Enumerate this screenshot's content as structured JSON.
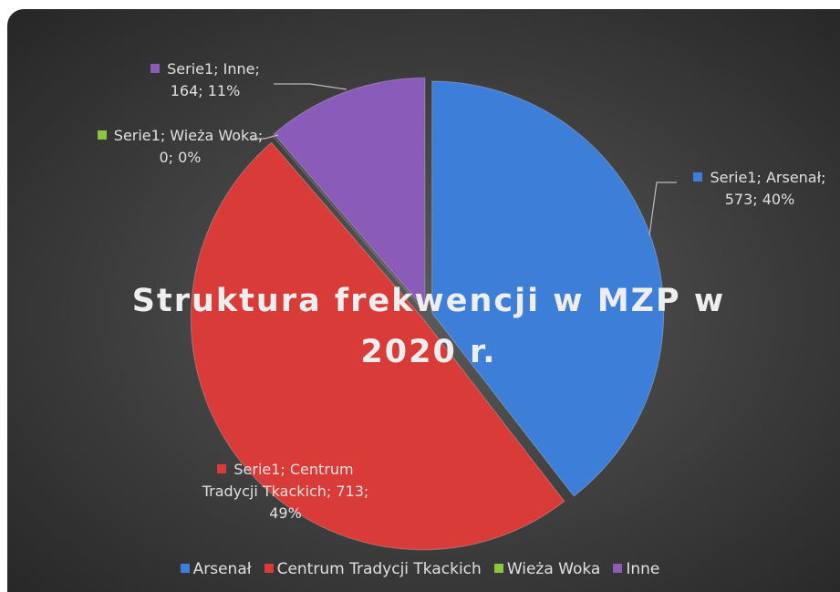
{
  "chart_data": {
    "type": "pie",
    "title": "Struktura frekwencji w MZP w 2020 r.",
    "categories": [
      "Arsenał",
      "Centrum Tradycji Tkackich",
      "Wieża Woka",
      "Inne"
    ],
    "values": [
      573,
      713,
      0,
      164
    ],
    "value_labels": [
      "Serie1; Arsenał; 573; 40%",
      "Serie1; Centrum Tradycji Tkackich; 713; 49%",
      "Serie1; Wieża Woka; 0; 0%",
      "Serie1; Inne; 164; 11%"
    ],
    "colors": [
      "#3d7fd8",
      "#d83b38",
      "#8cc63e",
      "#8a5bb8"
    ],
    "legend": "bottom"
  }
}
